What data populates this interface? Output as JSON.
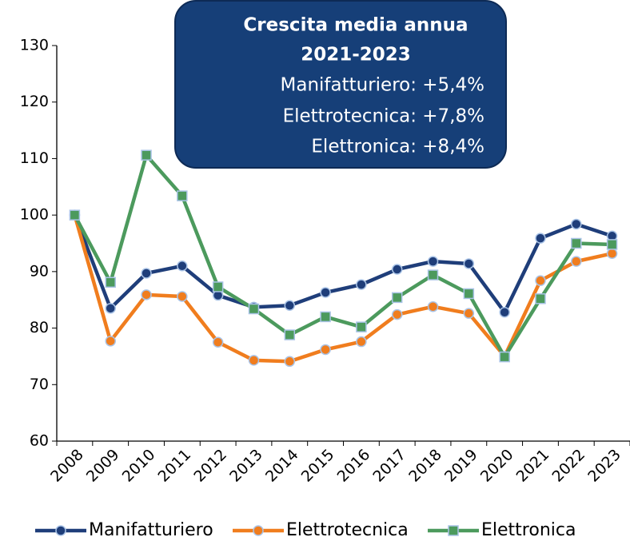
{
  "chart_data": {
    "type": "line",
    "categories": [
      "2008",
      "2009",
      "2010",
      "2011",
      "2012",
      "2013",
      "2014",
      "2015",
      "2016",
      "2017",
      "2018",
      "2019",
      "2020",
      "2021",
      "2022",
      "2023"
    ],
    "series": [
      {
        "name": "Manifatturiero",
        "color": "#1f3e7a",
        "marker": "circle",
        "values": [
          100,
          83.5,
          89.7,
          91,
          85.8,
          83.7,
          84,
          86.3,
          87.7,
          90.4,
          91.8,
          91.4,
          82.8,
          95.9,
          98.4,
          96.3
        ]
      },
      {
        "name": "Elettrotecnica",
        "color": "#f07d1e",
        "marker": "circle",
        "values": [
          100,
          77.7,
          85.9,
          85.6,
          77.5,
          74.3,
          74.1,
          76.2,
          77.6,
          82.4,
          83.8,
          82.6,
          75,
          88.4,
          91.8,
          93.2
        ]
      },
      {
        "name": "Elettronica",
        "color": "#4c9a5d",
        "marker": "square",
        "values": [
          100,
          88.1,
          110.6,
          103.4,
          87.3,
          83.4,
          78.8,
          82,
          80.2,
          85.4,
          89.4,
          86.1,
          74.9,
          85.2,
          95,
          94.8
        ]
      }
    ],
    "ylim": [
      60,
      130
    ],
    "yticks": [
      60,
      70,
      80,
      90,
      100,
      110,
      120,
      130
    ],
    "annotation": {
      "title": "Crescita media annua",
      "subtitle": "2021-2023",
      "lines": [
        "Manifatturiero: +5,4%",
        "Elettrotecnica: +7,8%",
        "Elettronica: +8,4%"
      ]
    },
    "legend": "bottom"
  }
}
